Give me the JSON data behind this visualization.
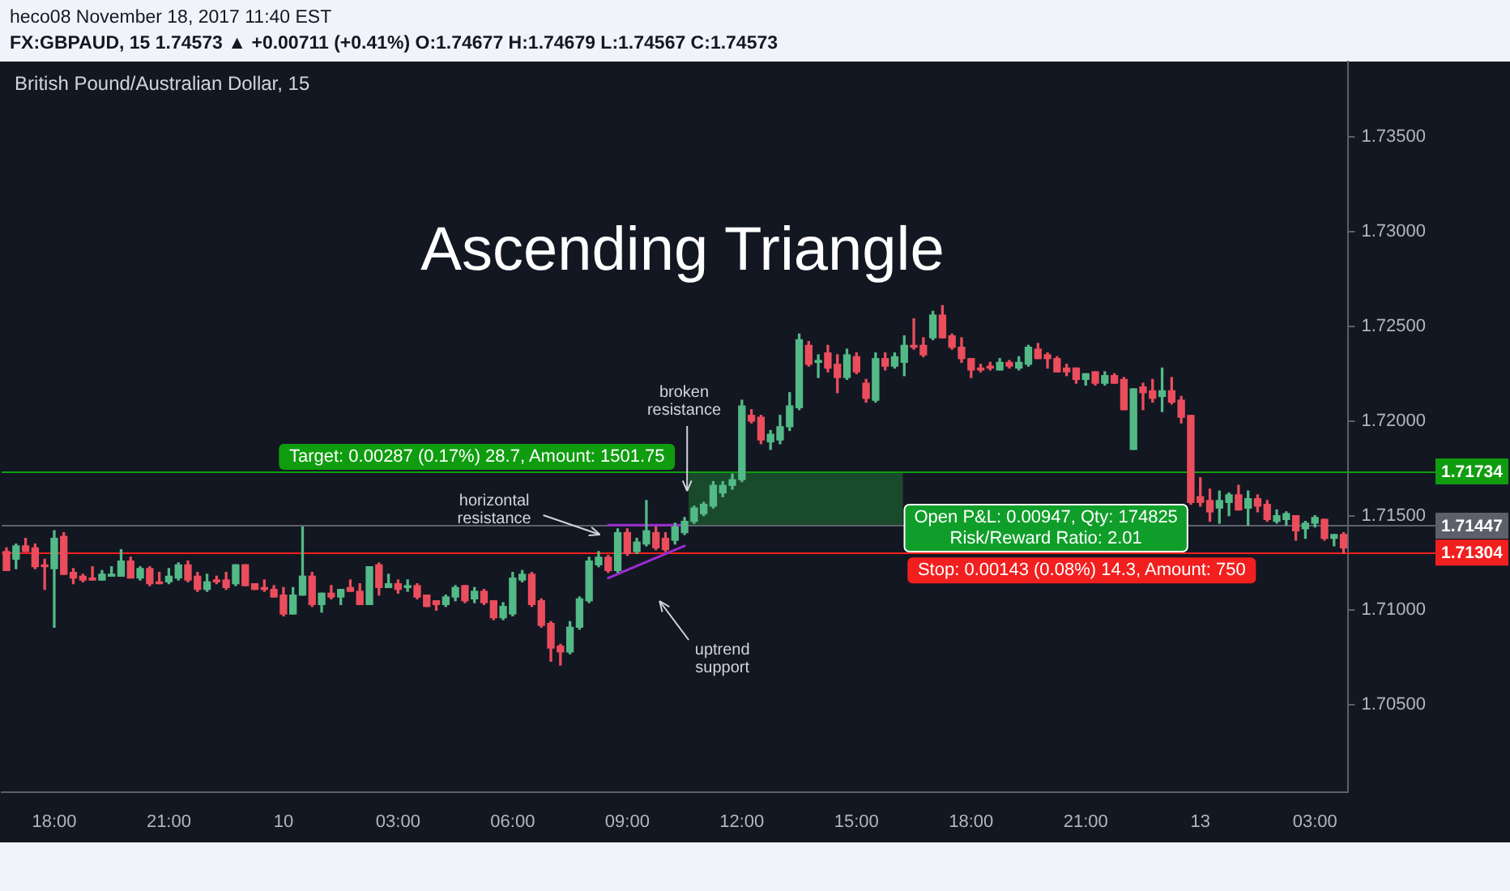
{
  "chart_data": {
    "type": "candlestick",
    "title": "Ascending Triangle",
    "subtitle": "British Pound/Australian Dollar, 15",
    "annotations": [
      "heco08 November 18, 2017 11:40 EST",
      "FX:GBPAUD, 15 1.74573 ▲ +0.00711 (+0.41%) O:1.74677 H:1.74679 L:1.74567 C:1.74573",
      "horizontal\nresistance",
      {
        "text": "broken\nresistance",
        "y": 1.7163
      },
      "uptrend\nsupport",
      {
        "text": "Target: 0.00287 (0.17%) 28.7, Amount: 1501.75",
        "y": 1.71734
      },
      {
        "text": "Open P&L: 0.00947, Qty: 174825\nRisk/Reward Ratio: 2.01",
        "y": 1.71447
      },
      {
        "text": "Stop: 0.00143 (0.08%) 14.3, Amount: 750",
        "y": 1.71304
      }
    ],
    "categories": [
      null,
      null,
      null,
      null,
      null,
      "18:00",
      null,
      null,
      null,
      null,
      null,
      null,
      null,
      null,
      null,
      null,
      null,
      "21:00",
      null,
      null,
      null,
      null,
      null,
      null,
      null,
      null,
      null,
      null,
      null,
      "10",
      null,
      null,
      null,
      null,
      null,
      null,
      null,
      null,
      null,
      null,
      null,
      "03:00",
      null,
      null,
      null,
      null,
      null,
      null,
      null,
      null,
      null,
      null,
      null,
      "06:00",
      null,
      null,
      null,
      null,
      null,
      null,
      null,
      null,
      null,
      null,
      null,
      "09:00",
      null,
      null,
      null,
      null,
      null,
      null,
      null,
      null,
      null,
      null,
      null,
      "12:00",
      null,
      null,
      null,
      null,
      null,
      null,
      null,
      null,
      null,
      null,
      null,
      "15:00",
      null,
      null,
      null,
      null,
      null,
      null,
      null,
      null,
      null,
      null,
      null,
      "18:00",
      null,
      null,
      null,
      null,
      null,
      null,
      null,
      null,
      null,
      null,
      null,
      "21:00",
      null,
      null,
      null,
      null,
      null,
      null,
      null,
      null,
      null,
      null,
      null,
      "13",
      null,
      null,
      null,
      null,
      null,
      null,
      null,
      null,
      null,
      null,
      null,
      "03:00",
      null,
      null,
      null
    ],
    "ohlc": [
      [
        1.7131,
        1.7133,
        1.7121,
        1.7121
      ],
      [
        1.7127,
        1.7135,
        1.7122,
        1.7134
      ],
      [
        1.7134,
        1.7138,
        1.7131,
        1.7131
      ],
      [
        1.7133,
        1.7135,
        1.7122,
        1.7123
      ],
      [
        1.7124,
        1.7127,
        1.7111,
        1.7123
      ],
      [
        1.7122,
        1.7142,
        1.7091,
        1.7138
      ],
      [
        1.7139,
        1.7141,
        1.7119,
        1.7119
      ],
      [
        1.712,
        1.7122,
        1.7114,
        1.7117
      ],
      [
        1.7118,
        1.7119,
        1.7115,
        1.7116
      ],
      [
        1.7117,
        1.7123,
        1.7116,
        1.7116
      ],
      [
        1.7116,
        1.7121,
        1.7116,
        1.7119
      ],
      [
        1.7118,
        1.7123,
        1.7118,
        1.7119
      ],
      [
        1.7118,
        1.7132,
        1.7118,
        1.7126
      ],
      [
        1.7126,
        1.7128,
        1.7117,
        1.7117
      ],
      [
        1.7117,
        1.7123,
        1.7116,
        1.7122
      ],
      [
        1.7122,
        1.7123,
        1.7113,
        1.7114
      ],
      [
        1.7115,
        1.712,
        1.7114,
        1.7114
      ],
      [
        1.7115,
        1.7122,
        1.7114,
        1.7118
      ],
      [
        1.7117,
        1.7125,
        1.7116,
        1.7124
      ],
      [
        1.7124,
        1.7126,
        1.7115,
        1.7116
      ],
      [
        1.7118,
        1.712,
        1.711,
        1.7111
      ],
      [
        1.7111,
        1.7119,
        1.711,
        1.7115
      ],
      [
        1.7116,
        1.7118,
        1.7114,
        1.7115
      ],
      [
        1.7116,
        1.712,
        1.7111,
        1.7112
      ],
      [
        1.7114,
        1.7124,
        1.7113,
        1.7124
      ],
      [
        1.7124,
        1.7124,
        1.7113,
        1.7113
      ],
      [
        1.7114,
        1.7114,
        1.7111,
        1.7111
      ],
      [
        1.7112,
        1.7116,
        1.711,
        1.7111
      ],
      [
        1.7111,
        1.7113,
        1.7107,
        1.7107
      ],
      [
        1.7108,
        1.7112,
        1.7097,
        1.7098
      ],
      [
        1.7098,
        1.7112,
        1.7098,
        1.7108
      ],
      [
        1.7108,
        1.7144,
        1.7108,
        1.7118
      ],
      [
        1.7118,
        1.712,
        1.7102,
        1.7103
      ],
      [
        1.7103,
        1.7109,
        1.7099,
        1.7109
      ],
      [
        1.7109,
        1.7113,
        1.7106,
        1.7107
      ],
      [
        1.7107,
        1.7111,
        1.7103,
        1.7111
      ],
      [
        1.7112,
        1.7116,
        1.711,
        1.711
      ],
      [
        1.711,
        1.7114,
        1.7103,
        1.7103
      ],
      [
        1.7103,
        1.7123,
        1.7103,
        1.7123
      ],
      [
        1.7124,
        1.7125,
        1.7108,
        1.7112
      ],
      [
        1.7112,
        1.7119,
        1.7112,
        1.7114
      ],
      [
        1.7114,
        1.7116,
        1.7109,
        1.7111
      ],
      [
        1.7112,
        1.7116,
        1.711,
        1.7113
      ],
      [
        1.7113,
        1.7114,
        1.7106,
        1.7107
      ],
      [
        1.7108,
        1.7108,
        1.7102,
        1.7102
      ],
      [
        1.7105,
        1.7105,
        1.71,
        1.7103
      ],
      [
        1.7103,
        1.7108,
        1.7102,
        1.7107
      ],
      [
        1.7107,
        1.7113,
        1.7105,
        1.7112
      ],
      [
        1.7113,
        1.7113,
        1.7104,
        1.7105
      ],
      [
        1.7106,
        1.7112,
        1.7104,
        1.711
      ],
      [
        1.711,
        1.7111,
        1.7103,
        1.7104
      ],
      [
        1.7105,
        1.7105,
        1.7095,
        1.7096
      ],
      [
        1.7096,
        1.7104,
        1.7095,
        1.7102
      ],
      [
        1.7098,
        1.712,
        1.7097,
        1.7117
      ],
      [
        1.7116,
        1.7121,
        1.7115,
        1.7119
      ],
      [
        1.7119,
        1.712,
        1.7102,
        1.7103
      ],
      [
        1.7105,
        1.7106,
        1.7091,
        1.7092
      ],
      [
        1.7093,
        1.7094,
        1.7073,
        1.708
      ],
      [
        1.7081,
        1.7082,
        1.7071,
        1.7078
      ],
      [
        1.7078,
        1.7094,
        1.7077,
        1.7091
      ],
      [
        1.7091,
        1.7107,
        1.709,
        1.7106
      ],
      [
        1.7105,
        1.7128,
        1.7104,
        1.7126
      ],
      [
        1.7124,
        1.7131,
        1.7123,
        1.7128
      ],
      [
        1.7128,
        1.7129,
        1.712,
        1.7121
      ],
      [
        1.7121,
        1.7143,
        1.712,
        1.7141
      ],
      [
        1.7141,
        1.7143,
        1.7129,
        1.713
      ],
      [
        1.7131,
        1.7138,
        1.713,
        1.7136
      ],
      [
        1.7135,
        1.7158,
        1.7134,
        1.7142
      ],
      [
        1.7141,
        1.7144,
        1.7132,
        1.7133
      ],
      [
        1.7138,
        1.7141,
        1.7131,
        1.7132
      ],
      [
        1.7137,
        1.7146,
        1.7135,
        1.7144
      ],
      [
        1.7141,
        1.7149,
        1.714,
        1.7147
      ],
      [
        1.7147,
        1.7155,
        1.7146,
        1.7154
      ],
      [
        1.7151,
        1.7157,
        1.715,
        1.7156
      ],
      [
        1.7155,
        1.7168,
        1.7154,
        1.7166
      ],
      [
        1.7162,
        1.7168,
        1.716,
        1.7166
      ],
      [
        1.7166,
        1.7172,
        1.7164,
        1.7169
      ],
      [
        1.7169,
        1.7211,
        1.7168,
        1.7208
      ],
      [
        1.7203,
        1.7206,
        1.7199,
        1.72
      ],
      [
        1.7202,
        1.7203,
        1.7188,
        1.719
      ],
      [
        1.7189,
        1.7195,
        1.7185,
        1.7193
      ],
      [
        1.719,
        1.7203,
        1.7188,
        1.7197
      ],
      [
        1.7197,
        1.7215,
        1.7195,
        1.7208
      ],
      [
        1.7207,
        1.7246,
        1.7206,
        1.7243
      ],
      [
        1.724,
        1.7242,
        1.7229,
        1.723
      ],
      [
        1.7231,
        1.7235,
        1.7223,
        1.7232
      ],
      [
        1.7236,
        1.724,
        1.7226,
        1.7228
      ],
      [
        1.723,
        1.7235,
        1.7215,
        1.7223
      ],
      [
        1.7223,
        1.7238,
        1.7222,
        1.7235
      ],
      [
        1.7234,
        1.7236,
        1.7225,
        1.7226
      ],
      [
        1.722,
        1.7222,
        1.721,
        1.7212
      ],
      [
        1.7211,
        1.7236,
        1.721,
        1.7233
      ],
      [
        1.7233,
        1.7236,
        1.7227,
        1.7229
      ],
      [
        1.7229,
        1.7236,
        1.7228,
        1.7234
      ],
      [
        1.7231,
        1.7245,
        1.7224,
        1.724
      ],
      [
        1.724,
        1.7254,
        1.7238,
        1.7239
      ],
      [
        1.724,
        1.7244,
        1.7234,
        1.7235
      ],
      [
        1.7244,
        1.7258,
        1.7243,
        1.7256
      ],
      [
        1.7256,
        1.7261,
        1.7244,
        1.7244
      ],
      [
        1.7245,
        1.7246,
        1.7238,
        1.7239
      ],
      [
        1.7239,
        1.7244,
        1.7231,
        1.7233
      ],
      [
        1.7233,
        1.7233,
        1.7223,
        1.7227
      ],
      [
        1.7228,
        1.723,
        1.7226,
        1.7227
      ],
      [
        1.7229,
        1.7231,
        1.7227,
        1.7228
      ],
      [
        1.7227,
        1.7233,
        1.7227,
        1.7231
      ],
      [
        1.7231,
        1.7232,
        1.7228,
        1.7229
      ],
      [
        1.7228,
        1.7234,
        1.7227,
        1.7231
      ],
      [
        1.723,
        1.724,
        1.7229,
        1.7239
      ],
      [
        1.7238,
        1.7241,
        1.7233,
        1.7233
      ],
      [
        1.7235,
        1.7236,
        1.7228,
        1.7233
      ],
      [
        1.7233,
        1.7234,
        1.7226,
        1.7226
      ],
      [
        1.7228,
        1.723,
        1.7224,
        1.7226
      ],
      [
        1.7228,
        1.7228,
        1.722,
        1.7222
      ],
      [
        1.7222,
        1.7225,
        1.7219,
        1.7225
      ],
      [
        1.7226,
        1.7226,
        1.7219,
        1.722
      ],
      [
        1.722,
        1.7226,
        1.7219,
        1.7224
      ],
      [
        1.7224,
        1.7225,
        1.722,
        1.722
      ],
      [
        1.7222,
        1.7223,
        1.7206,
        1.7206
      ],
      [
        1.7185,
        1.7217,
        1.7185,
        1.7217
      ],
      [
        1.7218,
        1.722,
        1.7206,
        1.7215
      ],
      [
        1.7216,
        1.7222,
        1.721,
        1.7212
      ],
      [
        1.7213,
        1.7228,
        1.7205,
        1.7216
      ],
      [
        1.7216,
        1.7223,
        1.7209,
        1.721
      ],
      [
        1.7211,
        1.7213,
        1.7199,
        1.7202
      ],
      [
        1.7203,
        1.7203,
        1.7156,
        1.7157
      ],
      [
        1.716,
        1.717,
        1.7155,
        1.7157
      ],
      [
        1.7158,
        1.7164,
        1.7147,
        1.7152
      ],
      [
        1.7154,
        1.7163,
        1.7146,
        1.7158
      ],
      [
        1.7157,
        1.7162,
        1.715,
        1.7161
      ],
      [
        1.7161,
        1.7166,
        1.7153,
        1.7153
      ],
      [
        1.7154,
        1.7163,
        1.7145,
        1.7159
      ],
      [
        1.7159,
        1.7161,
        1.7152,
        1.7155
      ],
      [
        1.7156,
        1.7158,
        1.7147,
        1.7148
      ],
      [
        1.7147,
        1.7153,
        1.7146,
        1.715
      ],
      [
        1.7148,
        1.7152,
        1.7145,
        1.7151
      ],
      [
        1.715,
        1.715,
        1.7137,
        1.7142
      ],
      [
        1.7143,
        1.7147,
        1.7138,
        1.7146
      ],
      [
        1.7146,
        1.715,
        1.7144,
        1.7149
      ],
      [
        1.7148,
        1.7148,
        1.7137,
        1.7138
      ],
      [
        1.7138,
        1.714,
        1.7134,
        1.714
      ],
      [
        1.714,
        1.7141,
        1.713,
        1.7133
      ]
    ],
    "colors": [
      "#eb4d5c",
      "#53b987",
      "#eb4d5c",
      "#eb4d5c",
      "#eb4d5c",
      "#53b987",
      "#eb4d5c",
      "#eb4d5c",
      "#eb4d5c",
      "#eb4d5c",
      "#53b987",
      "#53b987",
      "#53b987",
      "#eb4d5c",
      "#53b987",
      "#eb4d5c",
      "#eb4d5c",
      "#53b987",
      "#53b987",
      "#eb4d5c",
      "#eb4d5c",
      "#53b987",
      "#eb4d5c",
      "#eb4d5c",
      "#53b987",
      "#eb4d5c",
      "#eb4d5c",
      "#eb4d5c",
      "#eb4d5c",
      "#eb4d5c",
      "#53b987",
      "#53b987",
      "#eb4d5c",
      "#53b987",
      "#eb4d5c",
      "#53b987",
      "#eb4d5c",
      "#eb4d5c",
      "#53b987",
      "#eb4d5c",
      "#53b987",
      "#eb4d5c",
      "#53b987",
      "#eb4d5c",
      "#eb4d5c",
      "#eb4d5c",
      "#53b987",
      "#53b987",
      "#eb4d5c",
      "#53b987",
      "#eb4d5c",
      "#eb4d5c",
      "#53b987",
      "#53b987",
      "#53b987",
      "#eb4d5c",
      "#eb4d5c",
      "#eb4d5c",
      "#eb4d5c",
      "#53b987",
      "#53b987",
      "#53b987",
      "#53b987",
      "#eb4d5c",
      "#53b987",
      "#eb4d5c",
      "#53b987",
      "#53b987",
      "#eb4d5c",
      "#eb4d5c",
      "#53b987",
      "#53b987",
      "#53b987",
      "#53b987",
      "#53b987",
      "#53b987",
      "#53b987",
      "#53b987",
      "#eb4d5c",
      "#eb4d5c",
      "#53b987",
      "#53b987",
      "#53b987",
      "#53b987",
      "#eb4d5c",
      "#53b987",
      "#eb4d5c",
      "#eb4d5c",
      "#53b987",
      "#eb4d5c",
      "#eb4d5c",
      "#53b987",
      "#eb4d5c",
      "#53b987",
      "#53b987",
      "#eb4d5c",
      "#eb4d5c",
      "#53b987",
      "#eb4d5c",
      "#eb4d5c",
      "#eb4d5c",
      "#eb4d5c",
      "#eb4d5c",
      "#eb4d5c",
      "#53b987",
      "#eb4d5c",
      "#53b987",
      "#53b987",
      "#eb4d5c",
      "#eb4d5c",
      "#eb4d5c",
      "#eb4d5c",
      "#eb4d5c",
      "#53b987",
      "#eb4d5c",
      "#53b987",
      "#eb4d5c",
      "#eb4d5c",
      "#53b987",
      "#eb4d5c",
      "#eb4d5c",
      "#53b987",
      "#eb4d5c",
      "#eb4d5c",
      "#eb4d5c",
      "#eb4d5c",
      "#eb4d5c",
      "#53b987",
      "#53b987",
      "#eb4d5c",
      "#53b987",
      "#eb4d5c",
      "#eb4d5c",
      "#53b987",
      "#53b987",
      "#eb4d5c",
      "#53b987",
      "#53b987",
      "#eb4d5c",
      "#53b987",
      "#eb4d5c"
    ],
    "series": [
      {
        "type": "line",
        "color": "#9d2bd1",
        "values": [
          null,
          null,
          null,
          null,
          null,
          null,
          null,
          null,
          null,
          null,
          null,
          null,
          null,
          null,
          null,
          null,
          null,
          null,
          null,
          null,
          null,
          null,
          null,
          null,
          null,
          null,
          null,
          null,
          null,
          null,
          null,
          null,
          null,
          null,
          null,
          null,
          null,
          null,
          null,
          null,
          null,
          null,
          null,
          null,
          null,
          null,
          null,
          null,
          null,
          null,
          null,
          null,
          null,
          null,
          null,
          null,
          null,
          null,
          null,
          null,
          null,
          null,
          null,
          1.7145,
          null,
          null,
          null,
          null,
          null,
          null,
          null,
          1.7145,
          null,
          null,
          null,
          null,
          null,
          null,
          null,
          null,
          null,
          null,
          null,
          null,
          null,
          null,
          null,
          null,
          null,
          null,
          null,
          null,
          null,
          null,
          null,
          null,
          null,
          null,
          null,
          null,
          null,
          null,
          null,
          null,
          null,
          null,
          null,
          null,
          null,
          null,
          null,
          null,
          null,
          null,
          null,
          null,
          null,
          null,
          null,
          null,
          null,
          null,
          null,
          null,
          null,
          null,
          null,
          null,
          null,
          null,
          null,
          null,
          null,
          null,
          null,
          null,
          null,
          null,
          null,
          null,
          null
        ]
      },
      {
        "type": "line",
        "color": "#9d2bd1",
        "values": [
          null,
          null,
          null,
          null,
          null,
          null,
          null,
          null,
          null,
          null,
          null,
          null,
          null,
          null,
          null,
          null,
          null,
          null,
          null,
          null,
          null,
          null,
          null,
          null,
          null,
          null,
          null,
          null,
          null,
          null,
          null,
          null,
          null,
          null,
          null,
          null,
          null,
          null,
          null,
          null,
          null,
          null,
          null,
          null,
          null,
          null,
          null,
          null,
          null,
          null,
          null,
          null,
          null,
          null,
          null,
          null,
          null,
          null,
          null,
          null,
          null,
          null,
          null,
          1.7117,
          null,
          null,
          null,
          null,
          null,
          null,
          null,
          1.7134,
          null,
          null,
          null,
          null,
          null,
          null,
          null,
          null,
          null,
          null,
          null,
          null,
          null,
          null,
          null,
          null,
          null,
          null,
          null,
          null,
          null,
          null,
          null,
          null,
          null,
          null,
          null,
          null,
          null,
          null,
          null,
          null,
          null,
          null,
          null,
          null,
          null,
          null,
          null,
          null,
          null,
          null,
          null,
          null,
          null,
          null,
          null,
          null,
          null,
          null,
          null,
          null,
          null,
          null,
          null,
          null,
          null,
          null,
          null,
          null,
          null,
          null,
          null,
          null,
          null,
          null,
          null,
          null,
          null
        ]
      }
    ],
    "ylim": [
      1.7004,
      1.739
    ],
    "yticks": [
      {
        "value": 1.705,
        "label": "1.70500"
      },
      {
        "value": 1.71,
        "label": "1.71000"
      },
      {
        "value": 1.715,
        "label": "1.71500"
      },
      {
        "value": 1.72,
        "label": "1.72000"
      },
      {
        "value": 1.725,
        "label": "1.72500"
      },
      {
        "value": 1.73,
        "label": "1.73000"
      },
      {
        "value": 1.735,
        "label": "1.73500"
      }
    ],
    "ref_lines": [
      {
        "axis": "y",
        "value": 1.71734,
        "label": "1.71734",
        "color": "#0f9d0f"
      },
      {
        "axis": "y",
        "value": 1.71447,
        "label": "1.71447",
        "color": "#5d606b"
      },
      {
        "axis": "y",
        "value": 1.71304,
        "label": "1.71304",
        "color": "#f21f1f"
      }
    ],
    "bands": [
      {
        "axis": "y",
        "from": 1.71447,
        "to": 1.71734,
        "color": "#1a4a2c"
      }
    ]
  }
}
